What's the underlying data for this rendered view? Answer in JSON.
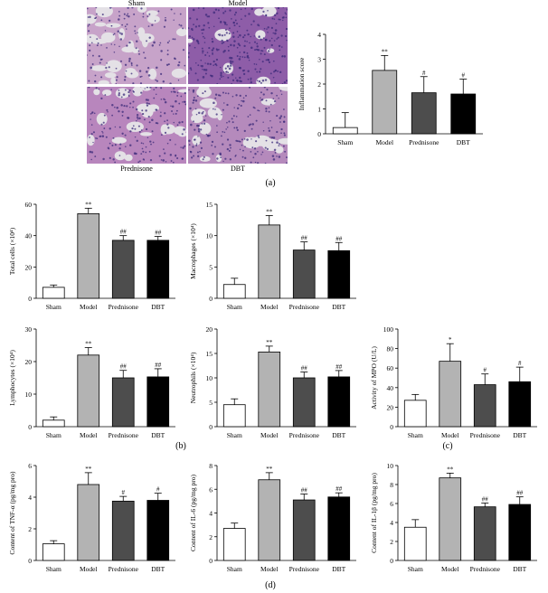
{
  "histology": {
    "panels": [
      {
        "label": "Sham",
        "color": "#c7a3c9",
        "density": 0.35,
        "position": "top"
      },
      {
        "label": "Model",
        "color": "#8e5da8",
        "density": 0.9,
        "position": "top"
      },
      {
        "label": "Prednisone",
        "color": "#b886bd",
        "density": 0.55,
        "position": "bottom"
      },
      {
        "label": "DBT",
        "color": "#b58abc",
        "density": 0.6,
        "position": "bottom"
      }
    ]
  },
  "panel_labels": [
    "(a)",
    "(b)",
    "(c)",
    "(d)"
  ],
  "groups": [
    "Sham",
    "Model",
    "Prednisone",
    "DBT"
  ],
  "bar_colors": [
    "#ffffff",
    "#b3b3b3",
    "#4d4d4d",
    "#000000"
  ],
  "chart_data": [
    {
      "type": "bar",
      "ylabel": "Inflammation score",
      "ylim": [
        0,
        4
      ],
      "ticks": [
        0,
        1,
        2,
        3,
        4
      ],
      "categories": [
        "Sham",
        "Model",
        "Prednisone",
        "DBT"
      ],
      "values": [
        0.25,
        2.55,
        1.65,
        1.6
      ],
      "errors": [
        0.6,
        0.6,
        0.65,
        0.6
      ],
      "marks": [
        "",
        "**",
        "#",
        "#"
      ]
    },
    {
      "type": "bar",
      "ylabel": "Total cells (×10⁴)",
      "ylim": [
        0,
        60
      ],
      "ticks": [
        0,
        20,
        40,
        60
      ],
      "categories": [
        "Sham",
        "Model",
        "Prednisone",
        "DBT"
      ],
      "values": [
        7,
        54,
        37,
        37
      ],
      "errors": [
        1.5,
        3.5,
        3,
        2.5
      ],
      "marks": [
        "",
        "**",
        "##",
        "##"
      ]
    },
    {
      "type": "bar",
      "ylabel": "Macrophages (×10⁴)",
      "ylim": [
        0,
        15
      ],
      "ticks": [
        0,
        5,
        10,
        15
      ],
      "categories": [
        "Sham",
        "Model",
        "Prednisone",
        "DBT"
      ],
      "values": [
        2.2,
        11.7,
        7.7,
        7.6
      ],
      "errors": [
        1.0,
        1.5,
        1.3,
        1.3
      ],
      "marks": [
        "",
        "**",
        "##",
        "##"
      ]
    },
    {
      "type": "bar",
      "ylabel": "Lymphocytes (×10⁴)",
      "ylim": [
        0,
        30
      ],
      "ticks": [
        0,
        10,
        20,
        30
      ],
      "categories": [
        "Sham",
        "Model",
        "Prednisone",
        "DBT"
      ],
      "values": [
        2,
        22,
        15,
        15.3
      ],
      "errors": [
        1,
        2.3,
        2.3,
        2.5
      ],
      "marks": [
        "",
        "**",
        "##",
        "##"
      ]
    },
    {
      "type": "bar",
      "ylabel": "Neutrophils (×10⁴)",
      "ylim": [
        0,
        20
      ],
      "ticks": [
        0,
        5,
        10,
        15,
        20
      ],
      "categories": [
        "Sham",
        "Model",
        "Prednisone",
        "DBT"
      ],
      "values": [
        4.5,
        15.3,
        10,
        10.2
      ],
      "errors": [
        1.2,
        1.2,
        1.2,
        1.3
      ],
      "marks": [
        "",
        "**",
        "##",
        "##"
      ]
    },
    {
      "type": "bar",
      "ylabel": "Activity of MPO (U/L)",
      "ylim": [
        0,
        100
      ],
      "ticks": [
        0,
        20,
        40,
        60,
        80,
        100
      ],
      "categories": [
        "Sham",
        "Model",
        "Prednisone",
        "DBT"
      ],
      "values": [
        27,
        67,
        43,
        46
      ],
      "errors": [
        6,
        18,
        11,
        15
      ],
      "marks": [
        "",
        "*",
        "#",
        "#"
      ]
    },
    {
      "type": "bar",
      "ylabel": "Content of TNF-α (pg/mg pro)",
      "ylim": [
        0,
        6
      ],
      "ticks": [
        0,
        2,
        4,
        6
      ],
      "categories": [
        "Sham",
        "Model",
        "Prednisone",
        "DBT"
      ],
      "values": [
        1.05,
        4.8,
        3.75,
        3.8
      ],
      "errors": [
        0.2,
        0.75,
        0.3,
        0.45
      ],
      "marks": [
        "",
        "**",
        "#",
        "#"
      ]
    },
    {
      "type": "bar",
      "ylabel": "Content of IL-6 (pg/mg pro)",
      "ylim": [
        0,
        8
      ],
      "ticks": [
        0,
        2,
        4,
        6,
        8
      ],
      "categories": [
        "Sham",
        "Model",
        "Prednisone",
        "DBT"
      ],
      "values": [
        2.7,
        6.8,
        5.1,
        5.35
      ],
      "errors": [
        0.45,
        0.6,
        0.5,
        0.35
      ],
      "marks": [
        "",
        "**",
        "##",
        "##"
      ]
    },
    {
      "type": "bar",
      "ylabel": "Content of IL-1β (pg/mg pro)",
      "ylim": [
        0,
        10
      ],
      "ticks": [
        0,
        2,
        4,
        6,
        8,
        10
      ],
      "categories": [
        "Sham",
        "Model",
        "Prednisone",
        "DBT"
      ],
      "values": [
        3.5,
        8.7,
        5.65,
        5.9
      ],
      "errors": [
        0.8,
        0.5,
        0.4,
        0.8
      ],
      "marks": [
        "",
        "**",
        "##",
        "##"
      ]
    }
  ]
}
